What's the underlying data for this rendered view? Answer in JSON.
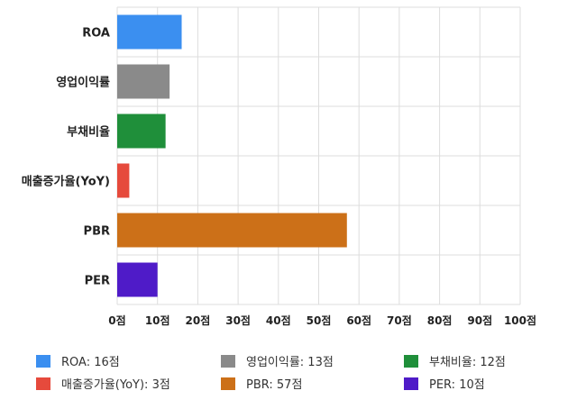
{
  "chart_data": {
    "type": "bar",
    "orientation": "horizontal",
    "categories": [
      "ROA",
      "영업이익률",
      "부채비율",
      "매출증가율(YoY)",
      "PBR",
      "PER"
    ],
    "values": [
      16,
      13,
      12,
      3,
      57,
      10
    ],
    "colors": [
      "#3b8ff0",
      "#8a8a8a",
      "#1f8f3a",
      "#e64a3c",
      "#cc7018",
      "#4f1bc8"
    ],
    "xlim": [
      0,
      100
    ],
    "xticks": [
      0,
      10,
      20,
      30,
      40,
      50,
      60,
      70,
      80,
      90,
      100
    ],
    "tick_suffix": "점",
    "grid": true,
    "legend_position": "bottom",
    "legend": [
      {
        "label": "ROA: 16점",
        "color": "#3b8ff0"
      },
      {
        "label": "영업이익률: 13점",
        "color": "#8a8a8a"
      },
      {
        "label": "부채비율: 12점",
        "color": "#1f8f3a"
      },
      {
        "label": "매출증가율(YoY): 3점",
        "color": "#e64a3c"
      },
      {
        "label": "PBR: 57점",
        "color": "#cc7018"
      },
      {
        "label": "PER: 10점",
        "color": "#4f1bc8"
      }
    ]
  }
}
